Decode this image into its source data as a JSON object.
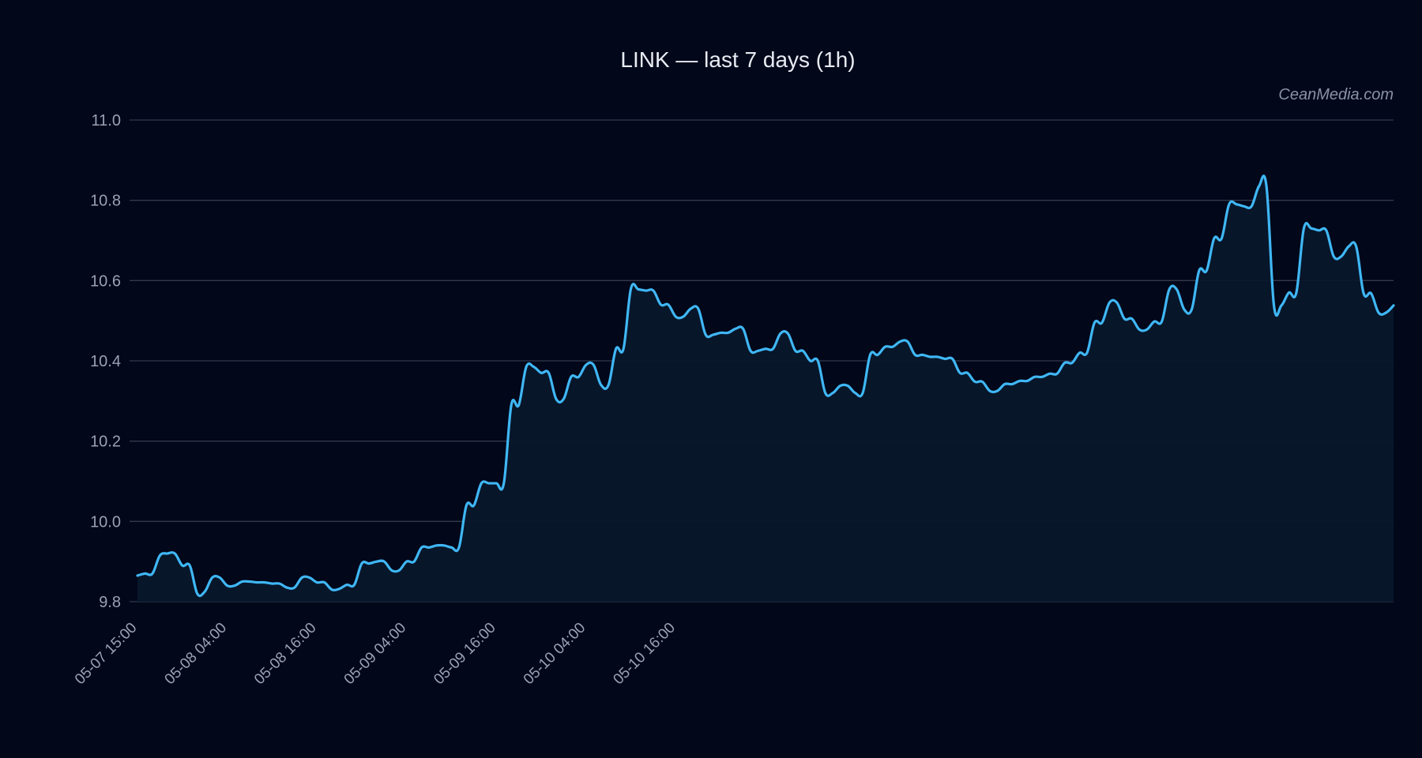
{
  "chart_data": {
    "type": "area",
    "title": "LINK — last 7 days (1h)",
    "watermark": "CeanMedia.com",
    "xlabel": "",
    "ylabel": "",
    "ylim": [
      9.8,
      11.0
    ],
    "yticks": [
      9.8,
      10.0,
      10.2,
      10.4,
      10.6,
      10.8,
      11.0
    ],
    "ytick_labels": [
      "9.8",
      "10.0",
      "10.2",
      "10.4",
      "10.6",
      "10.8",
      "11.0"
    ],
    "xticks": [
      "05-07 15:00",
      "05-08 04:00",
      "05-08 16:00",
      "05-09 04:00",
      "05-09 16:00",
      "05-10 04:00",
      "05-10 16:00"
    ],
    "xtick_step_hours": 12,
    "x_start": "05-07 15:00",
    "interval": "1h",
    "grid": true,
    "line_color": "#3fb7f5",
    "fill_color": "#08172b",
    "background": "#02071a",
    "values": [
      9.865,
      9.87,
      9.87,
      9.915,
      9.92,
      9.92,
      9.89,
      9.89,
      9.82,
      9.825,
      9.86,
      9.86,
      9.84,
      9.84,
      9.85,
      9.85,
      9.848,
      9.848,
      9.845,
      9.845,
      9.835,
      9.835,
      9.86,
      9.86,
      9.848,
      9.848,
      9.83,
      9.832,
      9.842,
      9.842,
      9.895,
      9.895,
      9.9,
      9.9,
      9.878,
      9.878,
      9.9,
      9.9,
      9.935,
      9.935,
      9.94,
      9.94,
      9.935,
      9.935,
      10.04,
      10.04,
      10.095,
      10.095,
      10.095,
      10.095,
      10.29,
      10.29,
      10.385,
      10.385,
      10.37,
      10.37,
      10.305,
      10.305,
      10.36,
      10.36,
      10.39,
      10.39,
      10.34,
      10.34,
      10.43,
      10.43,
      10.58,
      10.578,
      10.575,
      10.575,
      10.54,
      10.54,
      10.51,
      10.51,
      10.53,
      10.53,
      10.465,
      10.465,
      10.47,
      10.47,
      10.48,
      10.48,
      10.425,
      10.425,
      10.43,
      10.43,
      10.468,
      10.468,
      10.425,
      10.425,
      10.4,
      10.4,
      10.32,
      10.32,
      10.338,
      10.338,
      10.32,
      10.32,
      10.415,
      10.415,
      10.435,
      10.435,
      10.448,
      10.448,
      10.415,
      10.415,
      10.41,
      10.41,
      10.405,
      10.405,
      10.37,
      10.37,
      10.348,
      10.348,
      10.325,
      10.325,
      10.342,
      10.342,
      10.35,
      10.35,
      10.36,
      10.36,
      10.368,
      10.368,
      10.395,
      10.395,
      10.42,
      10.42,
      10.495,
      10.495,
      10.545,
      10.545,
      10.505,
      10.505,
      10.478,
      10.478,
      10.498,
      10.498,
      10.578,
      10.578,
      10.528,
      10.528,
      10.625,
      10.625,
      10.705,
      10.705,
      10.79,
      10.79,
      10.785,
      10.785,
      10.835,
      10.835,
      10.538,
      10.538,
      10.57,
      10.57,
      10.73,
      10.73,
      10.725,
      10.725,
      10.66,
      10.66,
      10.685,
      10.685,
      10.568,
      10.568,
      10.52,
      10.52,
      10.538
    ]
  }
}
